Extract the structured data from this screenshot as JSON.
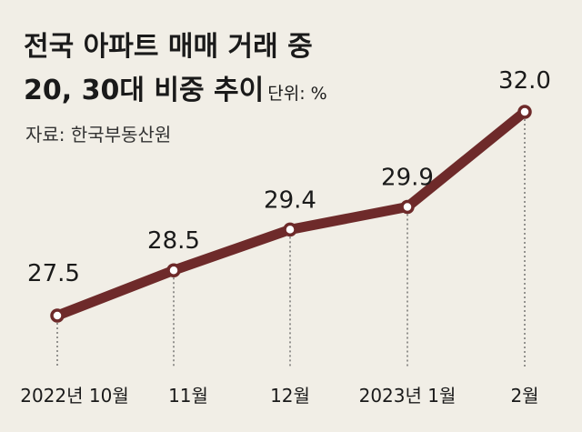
{
  "title": {
    "line1": "전국 아파트 매매 거래 중",
    "line2": "20, 30대 비중 추이",
    "unit": "단위: %"
  },
  "source": "자료: 한국부동산원",
  "colors": {
    "line": "#6e2a2a",
    "marker_fill": "#ffffff",
    "background": "#f1eee6"
  },
  "chart_data": {
    "type": "line",
    "categories": [
      "2022년 10월",
      "11월",
      "12월",
      "2023년 1월",
      "2월"
    ],
    "values": [
      27.5,
      28.5,
      29.4,
      29.9,
      32.0
    ],
    "data_labels": [
      "27.5",
      "28.5",
      "29.4",
      "29.9",
      "32.0"
    ],
    "title": "전국 아파트 매매 거래 중 20, 30대 비중 추이",
    "unit": "%",
    "grid": false,
    "legend": "none"
  }
}
